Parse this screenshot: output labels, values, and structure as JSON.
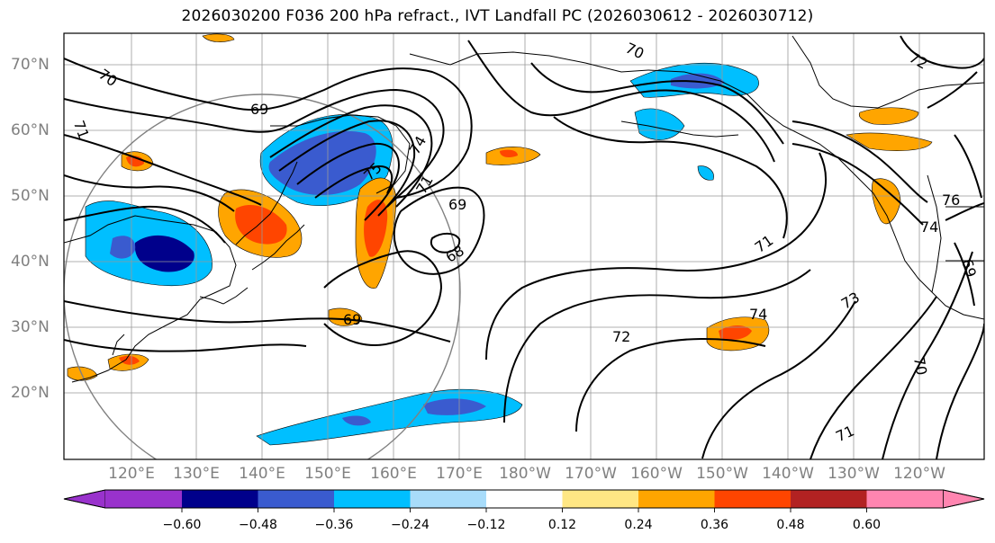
{
  "title": "2026030200 F036 200 hPa refract., IVT Landfall PC (2026030612 - 2026030712)",
  "lat_labels": [
    "70°N",
    "60°N",
    "50°N",
    "40°N",
    "30°N",
    "20°N"
  ],
  "lon_labels": [
    "120°E",
    "130°E",
    "140°E",
    "150°E",
    "160°E",
    "170°E",
    "180°W",
    "170°W",
    "160°W",
    "150°W",
    "140°W",
    "130°W",
    "120°W"
  ],
  "contour_labels": [
    "70",
    "69",
    "71",
    "75",
    "74",
    "71",
    "69",
    "68",
    "69",
    "72",
    "74",
    "73",
    "70",
    "71",
    "71",
    "76",
    "74",
    "69",
    "72",
    "70"
  ],
  "colorbar": {
    "tick_labels": [
      "−0.60",
      "−0.48",
      "−0.36",
      "−0.24",
      "−0.12",
      "0.12",
      "0.24",
      "0.36",
      "0.48",
      "0.60"
    ],
    "colors": [
      "#9932cc",
      "#00008b",
      "#3a5bcf",
      "#00bfff",
      "#a8dcfa",
      "#ffffff",
      "#ffe784",
      "#ffa500",
      "#ff4500",
      "#b22222",
      "#ff85b0"
    ]
  }
}
